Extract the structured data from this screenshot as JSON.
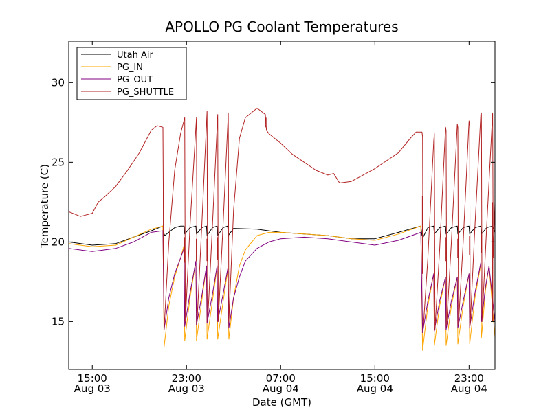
{
  "chart_data": {
    "type": "line",
    "title": "APOLLO PG Coolant Temperatures",
    "xlabel": "Date (GMT)",
    "ylabel": "Temperature (C)",
    "x_unit": "hours since Aug 03 00:00 GMT",
    "xlim": [
      13.0,
      49.2
    ],
    "ylim": [
      12.0,
      32.6
    ],
    "yticks": [
      15,
      20,
      25,
      30
    ],
    "xticks": [
      {
        "x": 15,
        "line1": "15:00",
        "line2": "Aug 03"
      },
      {
        "x": 23,
        "line1": "23:00",
        "line2": "Aug 03"
      },
      {
        "x": 31,
        "line1": "07:00",
        "line2": "Aug 04"
      },
      {
        "x": 39,
        "line1": "15:00",
        "line2": "Aug 04"
      },
      {
        "x": 47,
        "line1": "23:00",
        "line2": "Aug 04"
      }
    ],
    "legend_position": "top-left",
    "series": [
      {
        "name": "Utah Air",
        "color": "#000000",
        "x": [
          13.0,
          15.0,
          17.0,
          18.5,
          20.0,
          21.0,
          21.05,
          21.15,
          22.0,
          22.5,
          22.8,
          22.85,
          23.3,
          23.8,
          23.85,
          24.3,
          24.7,
          24.75,
          25.2,
          25.6,
          25.65,
          26.1,
          26.5,
          26.55,
          27.0,
          29.0,
          31.0,
          33.0,
          35.0,
          37.0,
          39.0,
          41.0,
          42.9,
          43.0,
          43.1,
          43.5,
          44.0,
          44.05,
          44.5,
          45.0,
          45.05,
          45.5,
          46.0,
          46.05,
          46.5,
          47.0,
          47.05,
          47.5,
          48.0,
          48.05,
          48.5,
          49.0,
          49.2
        ],
        "values": [
          20.0,
          19.8,
          19.9,
          20.3,
          20.7,
          21.0,
          20.6,
          20.4,
          20.9,
          21.0,
          21.0,
          20.5,
          20.9,
          21.0,
          20.5,
          20.9,
          21.0,
          20.4,
          20.9,
          21.0,
          20.4,
          20.9,
          21.0,
          20.4,
          20.85,
          20.8,
          20.6,
          20.5,
          20.4,
          20.2,
          20.2,
          20.6,
          21.0,
          20.4,
          20.3,
          20.9,
          21.0,
          20.5,
          20.9,
          21.0,
          20.5,
          20.9,
          21.0,
          20.5,
          20.9,
          21.0,
          20.5,
          20.9,
          21.0,
          20.5,
          20.9,
          21.0,
          20.6
        ]
      },
      {
        "name": "PG_IN",
        "color": "#ffa500",
        "x": [
          13.0,
          15.0,
          17.0,
          18.5,
          20.0,
          21.0,
          21.1,
          21.5,
          22.0,
          22.5,
          22.8,
          22.85,
          23.3,
          23.8,
          23.85,
          24.3,
          24.7,
          24.75,
          25.2,
          25.6,
          25.65,
          26.1,
          26.5,
          26.6,
          27.0,
          27.5,
          28.0,
          29.0,
          30.0,
          31.0,
          33.0,
          35.0,
          37.0,
          39.0,
          41.0,
          42.9,
          43.05,
          43.5,
          44.0,
          44.05,
          44.5,
          45.0,
          45.05,
          45.5,
          46.0,
          46.05,
          46.5,
          47.0,
          47.05,
          47.5,
          48.0,
          48.05,
          48.4,
          48.7,
          49.2
        ],
        "values": [
          19.9,
          19.7,
          19.8,
          20.3,
          20.8,
          21.0,
          13.4,
          16.0,
          17.8,
          19.0,
          19.8,
          13.8,
          16.5,
          18.8,
          13.8,
          16.3,
          18.5,
          13.9,
          16.3,
          18.4,
          13.9,
          16.2,
          18.2,
          13.9,
          16.5,
          18.5,
          19.5,
          20.4,
          20.6,
          20.6,
          20.5,
          20.4,
          20.2,
          20.1,
          20.5,
          21.0,
          13.2,
          16.0,
          18.0,
          13.5,
          16.0,
          17.8,
          13.5,
          16.0,
          17.8,
          13.6,
          16.0,
          18.0,
          13.6,
          16.5,
          18.6,
          14.0,
          17.0,
          18.5,
          14.0
        ]
      },
      {
        "name": "PG_OUT",
        "color": "#800080",
        "x": [
          13.0,
          15.0,
          17.0,
          18.5,
          20.0,
          21.0,
          21.1,
          21.5,
          22.0,
          22.5,
          22.8,
          22.85,
          23.3,
          23.8,
          23.85,
          24.3,
          24.7,
          24.75,
          25.2,
          25.6,
          25.65,
          26.1,
          26.5,
          26.6,
          27.0,
          27.5,
          28.0,
          29.0,
          30.0,
          31.0,
          33.0,
          35.0,
          37.0,
          39.0,
          41.0,
          42.9,
          43.05,
          43.5,
          44.0,
          44.05,
          44.5,
          45.0,
          45.05,
          45.5,
          46.0,
          46.05,
          46.5,
          47.0,
          47.05,
          47.5,
          48.0,
          48.05,
          48.4,
          48.7,
          49.2
        ],
        "values": [
          19.6,
          19.4,
          19.6,
          20.0,
          20.6,
          20.7,
          14.5,
          16.5,
          18.0,
          19.0,
          19.6,
          14.7,
          16.8,
          18.8,
          14.8,
          16.6,
          18.5,
          14.9,
          16.7,
          18.5,
          15.0,
          16.7,
          18.3,
          14.6,
          16.5,
          17.8,
          18.8,
          19.6,
          20.0,
          20.2,
          20.3,
          20.2,
          20.0,
          19.8,
          20.1,
          20.6,
          14.3,
          16.3,
          18.0,
          14.4,
          16.3,
          17.8,
          14.5,
          16.3,
          17.8,
          14.6,
          16.3,
          18.0,
          14.6,
          16.8,
          18.7,
          15.0,
          17.2,
          18.5,
          15.0
        ]
      },
      {
        "name": "PG_SHUTTLE",
        "color": "#b22222",
        "x": [
          13.0,
          14.0,
          15.0,
          15.5,
          16.0,
          17.0,
          18.0,
          19.0,
          20.0,
          20.5,
          21.0,
          21.05,
          21.1,
          21.5,
          22.0,
          22.5,
          22.85,
          22.9,
          23.3,
          23.85,
          23.9,
          24.3,
          24.75,
          24.8,
          25.2,
          25.65,
          25.7,
          26.1,
          26.55,
          26.6,
          27.0,
          27.5,
          28.0,
          29.0,
          29.7,
          29.75,
          29.8,
          30.0,
          31.0,
          32.0,
          33.0,
          34.0,
          35.0,
          35.5,
          36.0,
          37.0,
          38.0,
          39.0,
          40.0,
          41.0,
          42.0,
          42.5,
          43.0,
          43.05,
          43.1,
          43.5,
          44.0,
          44.05,
          44.1,
          44.5,
          45.0,
          45.05,
          45.1,
          45.5,
          46.0,
          46.05,
          46.1,
          46.5,
          47.0,
          47.05,
          47.1,
          47.5,
          48.0,
          48.05,
          48.1,
          48.5,
          49.0,
          49.05,
          49.2
        ],
        "values": [
          21.9,
          21.6,
          21.8,
          22.5,
          22.8,
          23.5,
          24.5,
          25.6,
          27.0,
          27.3,
          27.2,
          20.5,
          14.5,
          20.0,
          24.5,
          26.8,
          27.8,
          15.0,
          21.0,
          27.8,
          15.0,
          21.0,
          28.2,
          15.0,
          21.0,
          28.0,
          15.0,
          21.0,
          28.1,
          15.0,
          22.0,
          26.5,
          27.8,
          28.4,
          28.0,
          27.4,
          27.0,
          26.8,
          26.2,
          25.5,
          25.0,
          24.5,
          24.2,
          24.3,
          23.7,
          23.8,
          24.2,
          24.6,
          25.1,
          25.6,
          26.5,
          26.9,
          26.9,
          26.6,
          14.5,
          19.0,
          26.3,
          26.8,
          14.5,
          19.5,
          27.2,
          27.0,
          14.8,
          20.0,
          27.4,
          27.2,
          14.8,
          20.0,
          27.6,
          27.3,
          14.8,
          21.0,
          28.0,
          28.1,
          15.0,
          21.0,
          28.1,
          19.0,
          22.5
        ]
      }
    ],
    "spikes": [
      {
        "series": "PG_SHUTTLE",
        "x": 21.05,
        "low": 18.6,
        "high": 23.2
      },
      {
        "series": "PG_SHUTTLE",
        "x": 22.85,
        "low": 18.7,
        "high": 20.3
      },
      {
        "series": "PG_SHUTTLE",
        "x": 23.85,
        "low": 18.8,
        "high": 20.2
      },
      {
        "series": "PG_SHUTTLE",
        "x": 24.75,
        "low": 18.8,
        "high": 20.2
      },
      {
        "series": "PG_SHUTTLE",
        "x": 25.65,
        "low": 18.9,
        "high": 20.3
      },
      {
        "series": "PG_SHUTTLE",
        "x": 43.05,
        "low": 18.0,
        "high": 22.9
      },
      {
        "series": "PG_SHUTTLE",
        "x": 44.05,
        "low": 18.5,
        "high": 20.2
      },
      {
        "series": "PG_SHUTTLE",
        "x": 45.05,
        "low": 18.8,
        "high": 20.3
      },
      {
        "series": "PG_SHUTTLE",
        "x": 46.05,
        "low": 19.0,
        "high": 20.2
      },
      {
        "series": "PG_SHUTTLE",
        "x": 47.05,
        "low": 19.2,
        "high": 20.4
      },
      {
        "series": "PG_SHUTTLE",
        "x": 48.05,
        "low": 19.3,
        "high": 20.5
      },
      {
        "series": "PG_SHUTTLE",
        "x": 49.0,
        "low": 15.0,
        "high": 22.5
      },
      {
        "series": "PG_SHUTTLE",
        "x": 29.75,
        "low": 27.2,
        "high": 27.8
      }
    ]
  }
}
